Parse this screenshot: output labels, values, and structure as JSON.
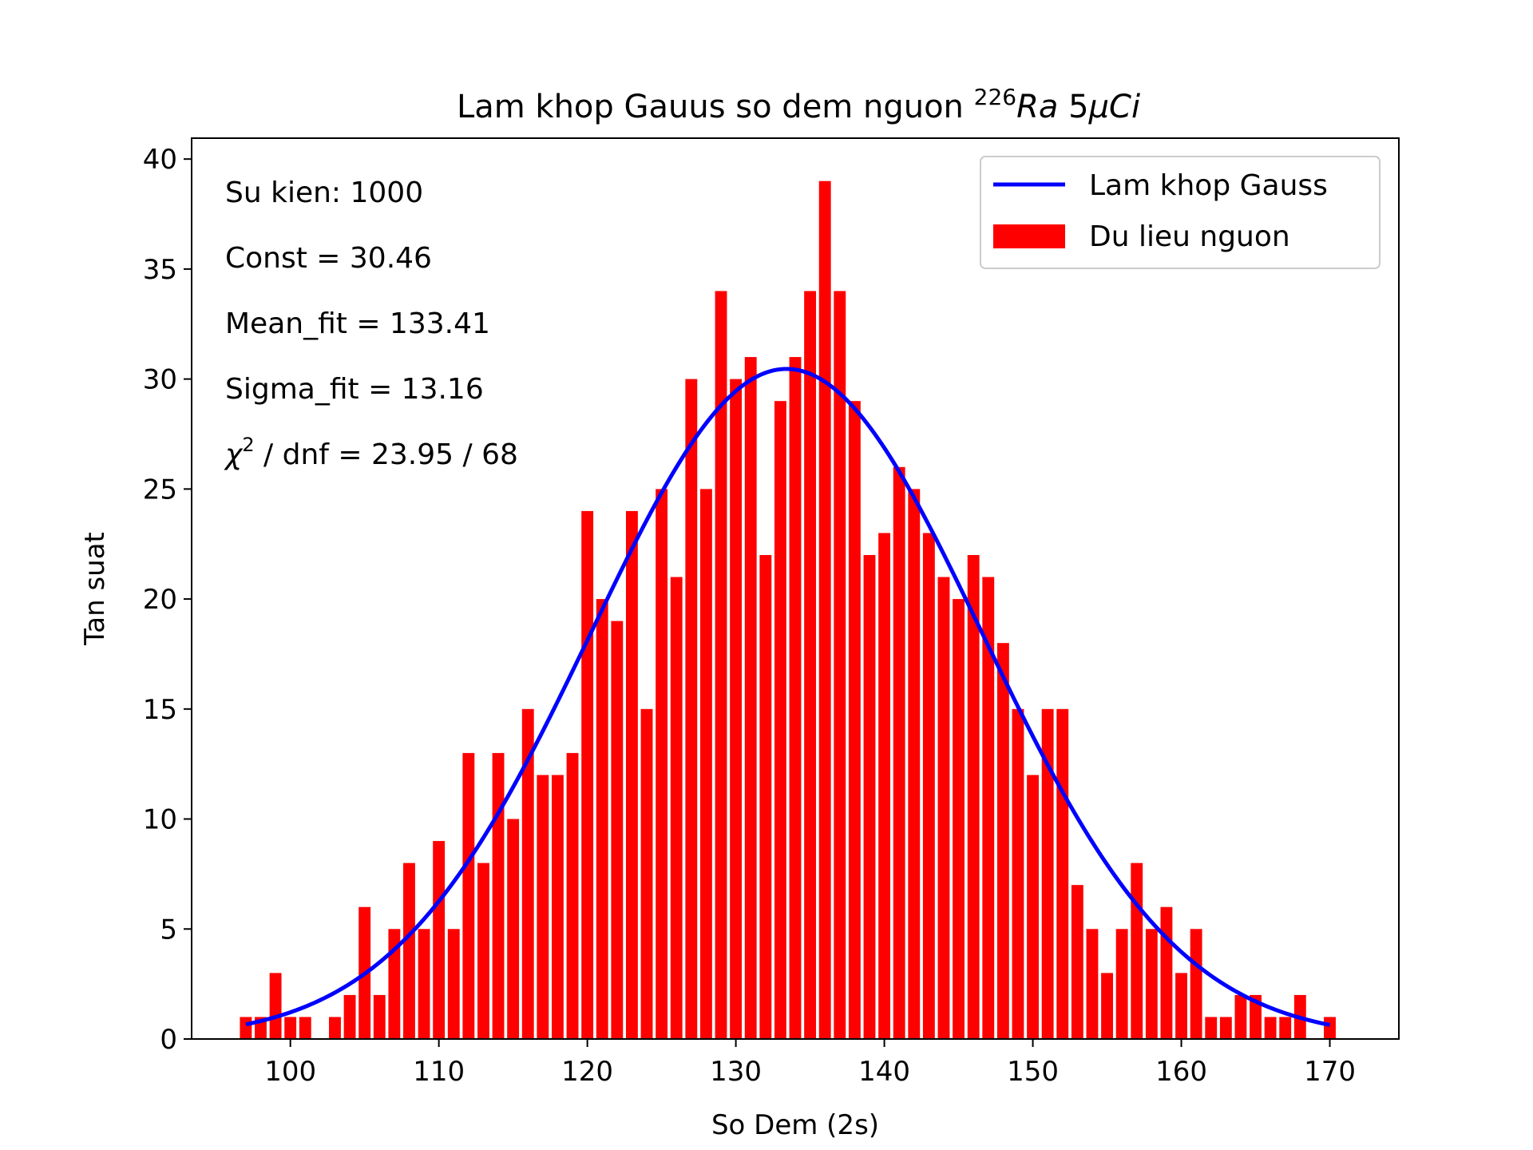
{
  "chart_data": {
    "type": "bar",
    "title": "Lam khop Gauus so dem nguon ",
    "title_sup": "226",
    "title_italic": "Ra",
    "title_tail": " 5",
    "title_mu": "μ",
    "title_ci": "Ci",
    "xlabel": "So Dem (2s)",
    "ylabel": "Tan suat",
    "xlim": [
      93.35,
      174.65
    ],
    "ylim": [
      0,
      40.95
    ],
    "xticks": [
      100,
      110,
      120,
      130,
      140,
      150,
      160,
      170
    ],
    "yticks": [
      0,
      5,
      10,
      15,
      20,
      25,
      30,
      35,
      40
    ],
    "grid": false,
    "legend_position": "top-right",
    "bar_color": "#ff0000",
    "fit_color": "#0000ff",
    "series": [
      {
        "name": "Du lieu nguon",
        "x": [
          97,
          98,
          99,
          100,
          101,
          102,
          103,
          104,
          105,
          106,
          107,
          108,
          109,
          110,
          111,
          112,
          113,
          114,
          115,
          116,
          117,
          118,
          119,
          120,
          121,
          122,
          123,
          124,
          125,
          126,
          127,
          128,
          129,
          130,
          131,
          132,
          133,
          134,
          135,
          136,
          137,
          138,
          139,
          140,
          141,
          142,
          143,
          144,
          145,
          146,
          147,
          148,
          149,
          150,
          151,
          152,
          153,
          154,
          155,
          156,
          157,
          158,
          159,
          160,
          161,
          162,
          163,
          164,
          165,
          166,
          167,
          168,
          169,
          170
        ],
        "values": [
          1,
          1,
          3,
          1,
          1,
          0,
          1,
          2,
          6,
          2,
          5,
          8,
          5,
          9,
          5,
          13,
          8,
          13,
          10,
          15,
          12,
          12,
          13,
          24,
          20,
          19,
          24,
          15,
          25,
          21,
          30,
          25,
          34,
          30,
          31,
          22,
          29,
          31,
          34,
          39,
          34,
          29,
          22,
          23,
          26,
          25,
          23,
          21,
          20,
          22,
          21,
          18,
          15,
          12,
          15,
          15,
          7,
          5,
          3,
          5,
          8,
          5,
          6,
          3,
          5,
          1,
          1,
          2,
          2,
          1,
          1,
          2,
          0,
          1
        ]
      },
      {
        "name": "Lam khop Gauss",
        "fit": {
          "const": 30.46,
          "mean": 133.41,
          "sigma": 13.16,
          "x_range": [
            97,
            170
          ]
        }
      }
    ],
    "annotations": {
      "events": "Su kien: 1000",
      "const": "Const = 30.46",
      "mean": "Mean_fit = 133.41",
      "sigma": "Sigma_fit = 13.16",
      "chi_symbol": "χ",
      "chi_sup": "2",
      "chi_rest": " / dnf = 23.95 / 68"
    }
  }
}
